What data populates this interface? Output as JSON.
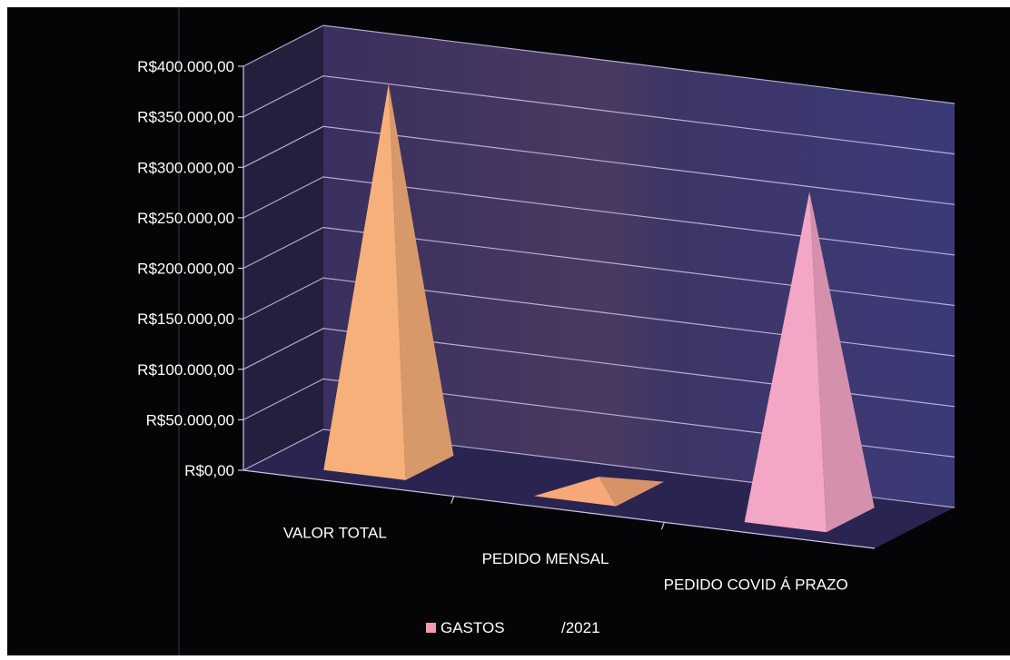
{
  "chart_data": {
    "type": "bar",
    "shape": "pyramid-3d",
    "categories": [
      "VALOR TOTAL",
      "PEDIDO MENSAL",
      "PEDIDO COVID Á PRAZO"
    ],
    "series": [
      {
        "name": "GASTOS",
        "values": [
          375000,
          12000,
          320000
        ]
      }
    ],
    "ylim": [
      0,
      400000
    ],
    "yticks": [
      0,
      50000,
      100000,
      150000,
      200000,
      250000,
      300000,
      350000,
      400000
    ],
    "ytick_labels": [
      "R$0,00",
      "R$50.000,00",
      "R$100.000,00",
      "R$150.000,00",
      "R$200.000,00",
      "R$250.000,00",
      "R$300.000,00",
      "R$350.000,00",
      "R$400.000,00"
    ],
    "grid": true,
    "legend": {
      "position": "bottom",
      "series_label": "GASTOS",
      "suffix": "/2021"
    },
    "colors": {
      "background": "#050406",
      "back_wall": "#3d3568",
      "floor": "#2a2450",
      "side_wall": "#241f3c",
      "gridline": "#c9c4e6",
      "axis_text": "#ffffff",
      "bars": [
        "#f7b07a",
        "#f8a878",
        "#f4a6c6"
      ],
      "legend_marker": "#f29bb0"
    }
  }
}
